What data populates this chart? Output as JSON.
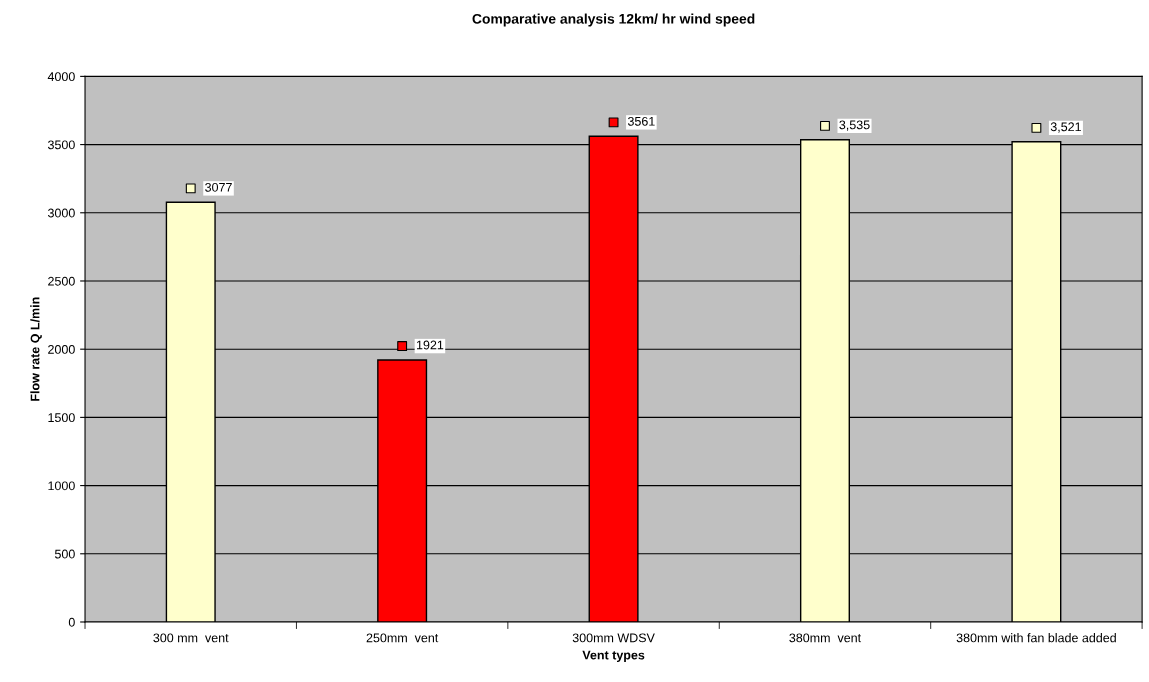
{
  "chart_data": {
    "type": "bar",
    "title": "Comparative analysis 12km/ hr wind speed",
    "xlabel": "Vent types",
    "ylabel": "Flow rate Q L/min",
    "categories": [
      "300 mm  vent",
      "250mm  vent",
      "300mm WDSV",
      "380mm  vent",
      "380mm with fan blade added"
    ],
    "values": [
      3077,
      1921,
      3561,
      3535,
      3521
    ],
    "colors": [
      "#ffffcc",
      "#ff0000",
      "#ff0000",
      "#ffffcc",
      "#ffffcc"
    ],
    "value_labels": [
      "3077",
      "1921",
      "3561",
      "3,535",
      "3,521"
    ],
    "ylim": [
      0,
      4000
    ],
    "yticks": [
      0,
      500,
      1000,
      1500,
      2000,
      2500,
      3000,
      3500,
      4000
    ],
    "grid": "y"
  }
}
